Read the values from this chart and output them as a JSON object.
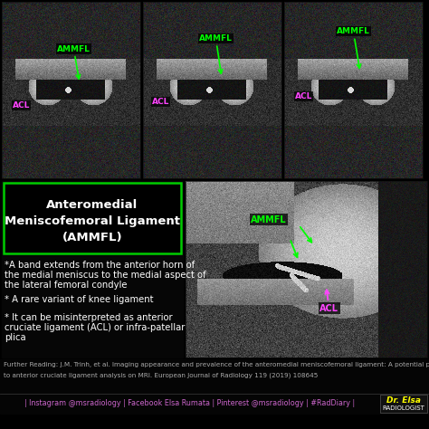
{
  "bg_color": "#000000",
  "title_box_border": "#00cc00",
  "title_text_line1": "Anteromedial",
  "title_text_line2": "Meniscofemoral Ligament",
  "title_text_line3": "(AMMFL)",
  "title_color": "#ffffff",
  "title_fontsize": 9.5,
  "bullet1_line1": "*A band extends from the anterior horn of",
  "bullet1_line2": "the medial meniscus to the medial aspect of",
  "bullet1_line3": "the lateral femoral condyle",
  "bullet2": "* A rare variant of knee ligament",
  "bullet3_line1": "* It can be misinterpreted as anterior",
  "bullet3_line2": "cruciate ligament (ACL) or infra-patellar",
  "bullet3_line3": "plica",
  "bullet_color": "#ffffff",
  "bullet_fontsize": 7.2,
  "label_ammfl_color": "#00ff00",
  "label_acl_color": "#ff44ff",
  "arrow_ammfl_color": "#00ff00",
  "arrow_acl_color": "#ff44ff",
  "further_reading_line1": "Further Reading: J.M. Trinh, et al. Imaging appearance and prevalence of the anteromedial meniscofemoral ligament: A potential pitfall",
  "further_reading_line2": "to anterior cruciate ligament analysis on MRI. European Journal of Radiology 119 (2019) 108645",
  "further_reading_color": "#aaaaaa",
  "further_reading_fontsize": 5.2,
  "social_text": "| Instagram @msradiology | Facebook Elsa Rumata | Pinterest @msradiology | #RadDiary |",
  "social_color": "#cc66cc",
  "social_fontsize": 5.8,
  "dr_elsa_text": "Dr. Elsa",
  "radiologist_text": "RADIOLOGIST",
  "dr_elsa_color": "#ffff00",
  "radiologist_color": "#ffffff",
  "dr_elsa_fontsize": 6.5,
  "radiologist_fontsize": 5.0
}
